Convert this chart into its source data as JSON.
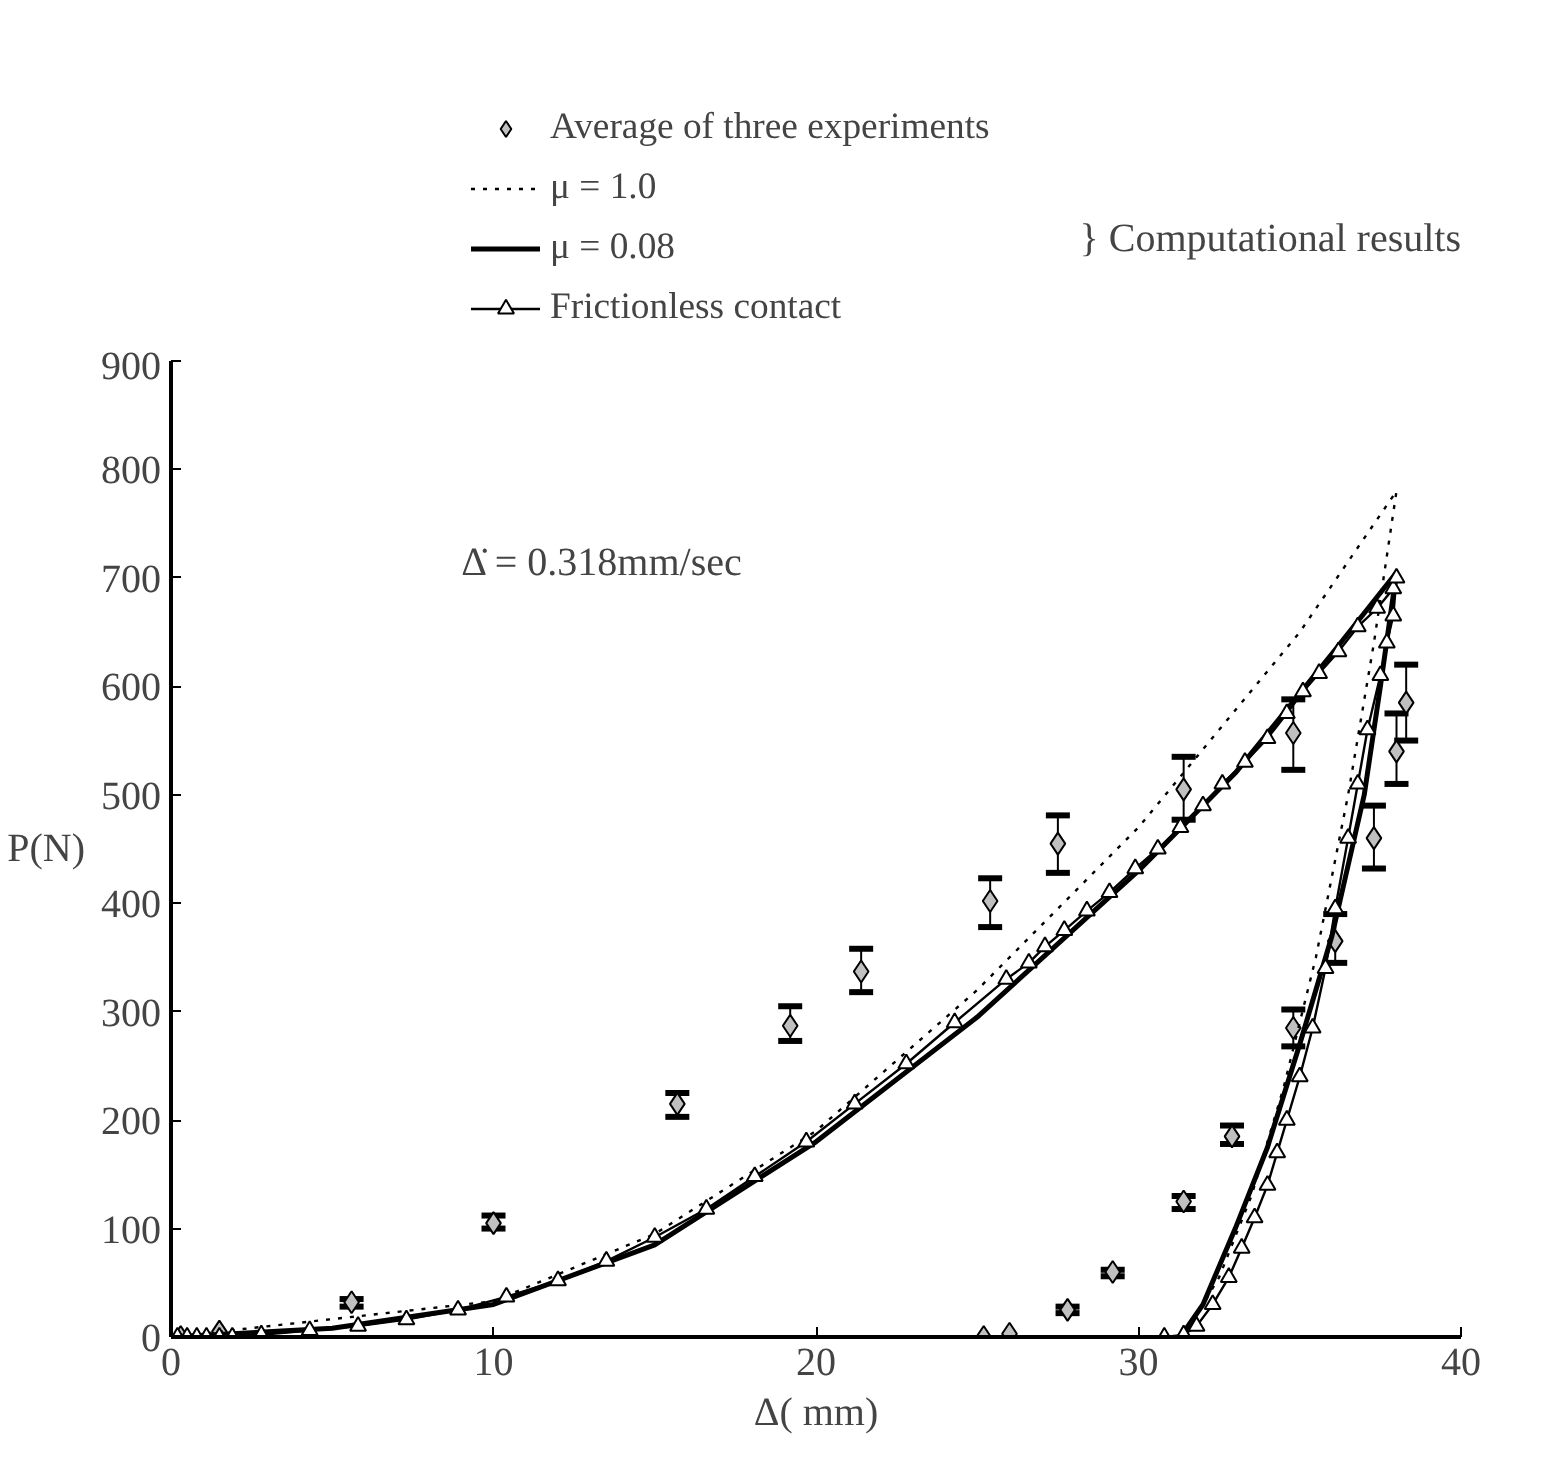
{
  "chart_data": {
    "type": "line",
    "xlabel": "Δ( mm)",
    "ylabel": "P(N)",
    "xlim": [
      0,
      40
    ],
    "ylim": [
      0,
      900
    ],
    "xticks": [
      0,
      10,
      20,
      30,
      40
    ],
    "yticks": [
      0,
      100,
      200,
      300,
      400,
      500,
      600,
      700,
      800,
      900
    ],
    "grid": false,
    "legend": "top",
    "annotations": [
      "Δ̇ = 0.318mm/sec",
      "} Computational results"
    ],
    "series": [
      {
        "name": "Average of three experiments",
        "type": "scatter",
        "marker": "diamond",
        "color": "#c0c0c0",
        "x": [
          0.3,
          1.5,
          5.6,
          10.0,
          15.7,
          19.2,
          21.4,
          25.4,
          27.5,
          31.4,
          34.8,
          25.2,
          26.0,
          27.8,
          29.2,
          31.4,
          32.9,
          34.8,
          36.1,
          37.3,
          38.0,
          38.3
        ],
        "values": [
          0,
          5,
          32,
          105,
          215,
          287,
          337,
          402,
          455,
          505,
          557,
          0,
          3,
          25,
          60,
          125,
          185,
          285,
          365,
          460,
          540,
          585
        ],
        "errors": [
          null,
          null,
          [
            28,
            35
          ],
          [
            100,
            112
          ],
          [
            203,
            225
          ],
          [
            273,
            305
          ],
          [
            318,
            358
          ],
          [
            378,
            423
          ],
          [
            428,
            481
          ],
          [
            477,
            535
          ],
          [
            523,
            588
          ],
          null,
          null,
          [
            22,
            28
          ],
          [
            56,
            62
          ],
          [
            118,
            130
          ],
          [
            178,
            195
          ],
          [
            268,
            302
          ],
          [
            345,
            390
          ],
          [
            432,
            490
          ],
          [
            510,
            575
          ],
          [
            550,
            620
          ]
        ]
      },
      {
        "name": "μ = 1.0",
        "line_style": "dotted",
        "color": "#000000",
        "x": [
          0,
          10,
          15,
          20,
          25,
          30,
          35,
          38,
          37.3,
          36.5,
          35.5,
          34.5,
          33.5,
          32.5,
          31.6,
          31.2
        ],
        "values": [
          0,
          33,
          95,
          190,
          320,
          470,
          650,
          780,
          640,
          500,
          350,
          230,
          130,
          55,
          10,
          0
        ]
      },
      {
        "name": "μ = 0.08",
        "line_style": "solid",
        "color": "#000000",
        "x": [
          0,
          5,
          10,
          15,
          20,
          25,
          30,
          33,
          36,
          38,
          37.5,
          37,
          36,
          35,
          34,
          33,
          32,
          31.3
        ],
        "values": [
          0,
          8,
          30,
          85,
          180,
          295,
          430,
          520,
          630,
          705,
          600,
          500,
          370,
          270,
          175,
          100,
          30,
          0
        ]
      },
      {
        "name": "Frictionless contact",
        "marker": "triangle",
        "line_style": "solid",
        "color": "#000000",
        "x": [
          0.2,
          0.5,
          0.8,
          1.1,
          1.5,
          1.9,
          2.8,
          4.3,
          5.8,
          7.3,
          8.9,
          10.4,
          12.0,
          13.5,
          15.0,
          16.6,
          18.1,
          19.7,
          21.2,
          22.8,
          24.3,
          25.9,
          26.6,
          27.1,
          27.7,
          28.4,
          29.1,
          29.9,
          30.6,
          31.3,
          32.0,
          32.6,
          33.3,
          34.0,
          34.6,
          35.1,
          35.6,
          36.2,
          36.8,
          37.4,
          37.9,
          38.0,
          37.9,
          37.7,
          37.5,
          37.1,
          36.8,
          36.5,
          36.1,
          35.8,
          35.4,
          35.0,
          34.6,
          34.3,
          34.0,
          33.6,
          33.2,
          32.8,
          32.3,
          31.8,
          31.4,
          30.8
        ],
        "values": [
          0,
          0,
          0,
          0,
          0,
          0,
          2,
          6,
          10,
          16,
          25,
          37,
          52,
          70,
          92,
          118,
          148,
          180,
          215,
          252,
          290,
          330,
          345,
          360,
          375,
          393,
          410,
          432,
          450,
          470,
          490,
          510,
          530,
          552,
          575,
          595,
          612,
          632,
          655,
          672,
          690,
          700,
          665,
          640,
          610,
          560,
          510,
          460,
          395,
          340,
          285,
          240,
          200,
          170,
          140,
          110,
          82,
          55,
          30,
          10,
          2,
          0
        ]
      }
    ]
  }
}
